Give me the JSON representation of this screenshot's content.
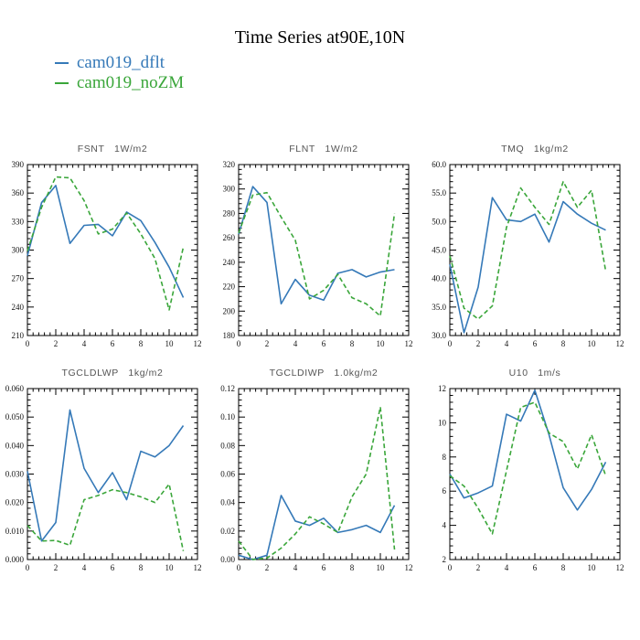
{
  "page": {
    "title": "Time Series at90E,10N",
    "background": "#ffffff"
  },
  "legend": {
    "position": "top-left",
    "items": [
      {
        "label": "cam019_dflt",
        "color": "#3579b8",
        "style": "solid"
      },
      {
        "label": "cam019_noZM",
        "color": "#3aa63a",
        "style": "dashed"
      }
    ]
  },
  "chart_data": [
    {
      "type": "line",
      "title": "FSNT",
      "units": "1W/m2",
      "x": [
        0,
        1,
        2,
        3,
        4,
        5,
        6,
        7,
        8,
        9,
        10,
        11
      ],
      "xlim": [
        0,
        12
      ],
      "xticks": [
        0,
        2,
        4,
        6,
        8,
        10,
        12
      ],
      "ylim": [
        210,
        390
      ],
      "ytick_step": 30,
      "y_decimals": 0,
      "grid": false,
      "series": [
        {
          "name": "cam019_dflt",
          "color": "#3579b8",
          "style": "solid",
          "values": [
            294,
            350,
            368,
            307,
            326,
            327,
            315,
            340,
            331,
            308,
            282,
            250
          ]
        },
        {
          "name": "cam019_noZM",
          "color": "#3aa63a",
          "style": "dashed",
          "values": [
            299,
            345,
            377,
            376,
            352,
            317,
            322,
            339,
            317,
            291,
            237,
            303
          ]
        }
      ]
    },
    {
      "type": "line",
      "title": "FLNT",
      "units": "1W/m2",
      "x": [
        0,
        1,
        2,
        3,
        4,
        5,
        6,
        7,
        8,
        9,
        10,
        11
      ],
      "xlim": [
        0,
        12
      ],
      "xticks": [
        0,
        2,
        4,
        6,
        8,
        10,
        12
      ],
      "ylim": [
        180,
        320
      ],
      "ytick_step": 20,
      "y_decimals": 0,
      "grid": false,
      "series": [
        {
          "name": "cam019_dflt",
          "color": "#3579b8",
          "style": "solid",
          "values": [
            263,
            302,
            289,
            206,
            226,
            213,
            209,
            231,
            234,
            228,
            232,
            234
          ]
        },
        {
          "name": "cam019_noZM",
          "color": "#3aa63a",
          "style": "dashed",
          "values": [
            264,
            295,
            297,
            277,
            258,
            210,
            217,
            230,
            211,
            206,
            196,
            280
          ]
        }
      ]
    },
    {
      "type": "line",
      "title": "TMQ",
      "units": "1kg/m2",
      "x": [
        0,
        1,
        2,
        3,
        4,
        5,
        6,
        7,
        8,
        9,
        10,
        11
      ],
      "xlim": [
        0,
        12
      ],
      "xticks": [
        0,
        2,
        4,
        6,
        8,
        10,
        12
      ],
      "ylim": [
        30,
        60
      ],
      "ytick_step": 5,
      "y_decimals": 1,
      "grid": false,
      "series": [
        {
          "name": "cam019_dflt",
          "color": "#3579b8",
          "style": "solid",
          "values": [
            42.5,
            30.5,
            38.5,
            54.2,
            50.3,
            50.0,
            51.3,
            46.4,
            53.5,
            51.3,
            49.7,
            48.5
          ]
        },
        {
          "name": "cam019_noZM",
          "color": "#3aa63a",
          "style": "dashed",
          "values": [
            44.0,
            34.8,
            32.9,
            35.2,
            49.0,
            55.9,
            52.5,
            49.5,
            57.0,
            52.5,
            55.5,
            41.3
          ]
        }
      ]
    },
    {
      "type": "line",
      "title": "TGCLDLWP",
      "units": "1kg/m2",
      "x": [
        0,
        1,
        2,
        3,
        4,
        5,
        6,
        7,
        8,
        9,
        10,
        11
      ],
      "xlim": [
        0,
        12
      ],
      "xticks": [
        0,
        2,
        4,
        6,
        8,
        10,
        12
      ],
      "ylim": [
        0.0,
        0.06
      ],
      "ytick_step": 0.01,
      "y_decimals": 3,
      "grid": false,
      "series": [
        {
          "name": "cam019_dflt",
          "color": "#3579b8",
          "style": "solid",
          "values": [
            0.031,
            0.0065,
            0.013,
            0.0525,
            0.032,
            0.0235,
            0.0305,
            0.021,
            0.038,
            0.036,
            0.04,
            0.047
          ]
        },
        {
          "name": "cam019_noZM",
          "color": "#3aa63a",
          "style": "dashed",
          "values": [
            0.012,
            0.0065,
            0.0067,
            0.005,
            0.021,
            0.0225,
            0.0245,
            0.0235,
            0.022,
            0.02,
            0.0265,
            0.003
          ]
        }
      ]
    },
    {
      "type": "line",
      "title": "TGCLDIWP",
      "units": "1.0kg/m2",
      "x": [
        0,
        1,
        2,
        3,
        4,
        5,
        6,
        7,
        8,
        9,
        10,
        11
      ],
      "xlim": [
        0,
        12
      ],
      "xticks": [
        0,
        2,
        4,
        6,
        8,
        10,
        12
      ],
      "ylim": [
        0.0,
        0.12
      ],
      "ytick_step": 0.02,
      "y_decimals": 2,
      "grid": false,
      "series": [
        {
          "name": "cam019_dflt",
          "color": "#3579b8",
          "style": "solid",
          "values": [
            0.003,
            0.0,
            0.003,
            0.045,
            0.027,
            0.024,
            0.029,
            0.019,
            0.021,
            0.024,
            0.019,
            0.038
          ]
        },
        {
          "name": "cam019_noZM",
          "color": "#3aa63a",
          "style": "dashed",
          "values": [
            0.013,
            0.0,
            0.001,
            0.008,
            0.018,
            0.03,
            0.025,
            0.019,
            0.044,
            0.06,
            0.107,
            0.007
          ]
        }
      ]
    },
    {
      "type": "line",
      "title": "U10",
      "units": "1m/s",
      "x": [
        0,
        1,
        2,
        3,
        4,
        5,
        6,
        7,
        8,
        9,
        10,
        11
      ],
      "xlim": [
        0,
        12
      ],
      "xticks": [
        0,
        2,
        4,
        6,
        8,
        10,
        12
      ],
      "ylim": [
        2,
        12
      ],
      "ytick_step": 2,
      "y_decimals": 0,
      "grid": false,
      "series": [
        {
          "name": "cam019_dflt",
          "color": "#3579b8",
          "style": "solid",
          "values": [
            7.0,
            5.6,
            5.9,
            6.3,
            10.5,
            10.1,
            11.9,
            9.3,
            6.2,
            4.9,
            6.1,
            7.7
          ]
        },
        {
          "name": "cam019_noZM",
          "color": "#3aa63a",
          "style": "dashed",
          "values": [
            6.9,
            6.3,
            5.0,
            3.5,
            7.2,
            10.9,
            11.2,
            9.4,
            8.9,
            7.3,
            9.3,
            6.9
          ]
        }
      ]
    }
  ]
}
